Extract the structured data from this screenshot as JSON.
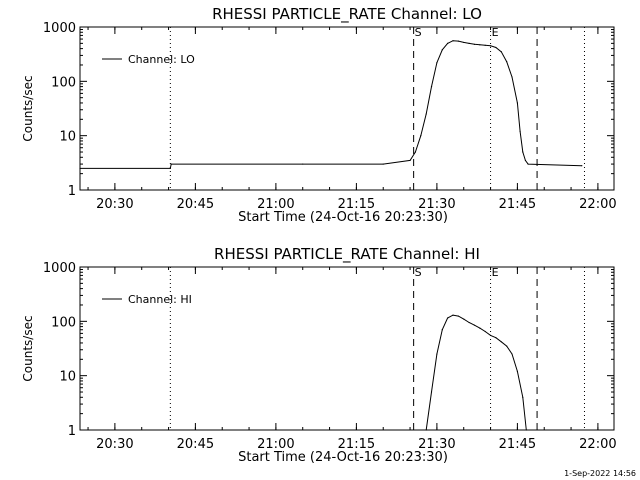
{
  "footer": {
    "timestamp": "1-Sep-2022 14:56"
  },
  "chart_data": [
    {
      "type": "line",
      "title": "RHESSI PARTICLE_RATE Channel: LO",
      "xlabel": "Start Time (24-Oct-16 20:23:30)",
      "ylabel": "Counts/sec",
      "yscale": "log",
      "ylim": [
        1,
        1000
      ],
      "xlim": [
        "20:23:30",
        "22:03:00"
      ],
      "xticks": [
        "20:30",
        "20:45",
        "21:00",
        "21:15",
        "21:30",
        "21:45",
        "22:00"
      ],
      "yticks": [
        "1",
        "10",
        "100",
        "1000"
      ],
      "legend": {
        "label": "Channel: LO",
        "position": "top-left"
      },
      "markers": [
        {
          "time": "20:40:20",
          "style": "dotted",
          "label": ""
        },
        {
          "time": "21:25:40",
          "style": "dashed",
          "label": "S"
        },
        {
          "time": "21:40:00",
          "style": "dotted",
          "label": "E"
        },
        {
          "time": "21:48:40",
          "style": "dashed",
          "label": ""
        },
        {
          "time": "21:57:30",
          "style": "dotted",
          "label": ""
        }
      ],
      "series": [
        {
          "name": "Channel: LO",
          "x": [
            "20:23:30",
            "20:40:20",
            "20:40:30",
            "21:05:00",
            "21:20:00",
            "21:25:00",
            "21:26:00",
            "21:27:00",
            "21:28:00",
            "21:29:00",
            "21:30:00",
            "21:31:00",
            "21:32:00",
            "21:33:00",
            "21:34:00",
            "21:35:00",
            "21:36:00",
            "21:37:00",
            "21:38:00",
            "21:39:00",
            "21:40:00",
            "21:41:00",
            "21:42:00",
            "21:43:00",
            "21:44:00",
            "21:45:00",
            "21:45:30",
            "21:46:00",
            "21:46:30",
            "21:47:00",
            "21:57:00"
          ],
          "y": [
            2.5,
            2.5,
            3.0,
            3.0,
            3.0,
            3.5,
            5,
            10,
            25,
            80,
            220,
            380,
            500,
            560,
            550,
            520,
            500,
            480,
            470,
            460,
            450,
            420,
            350,
            230,
            120,
            40,
            12,
            5,
            3.5,
            3.0,
            2.8
          ]
        }
      ]
    },
    {
      "type": "line",
      "title": "RHESSI PARTICLE_RATE Channel: HI",
      "xlabel": "Start Time (24-Oct-16 20:23:30)",
      "ylabel": "Counts/sec",
      "yscale": "log",
      "ylim": [
        1,
        1000
      ],
      "xlim": [
        "20:23:30",
        "22:03:00"
      ],
      "xticks": [
        "20:30",
        "20:45",
        "21:00",
        "21:15",
        "21:30",
        "21:45",
        "22:00"
      ],
      "yticks": [
        "1",
        "10",
        "100",
        "1000"
      ],
      "legend": {
        "label": "Channel: HI",
        "position": "top-left"
      },
      "markers": [
        {
          "time": "20:40:20",
          "style": "dotted",
          "label": ""
        },
        {
          "time": "21:25:40",
          "style": "dashed",
          "label": "S"
        },
        {
          "time": "21:40:00",
          "style": "dotted",
          "label": "E"
        },
        {
          "time": "21:48:40",
          "style": "dashed",
          "label": ""
        },
        {
          "time": "21:57:30",
          "style": "dotted",
          "label": ""
        }
      ],
      "series": [
        {
          "name": "Channel: HI",
          "x": [
            "21:28:00",
            "21:29:00",
            "21:30:00",
            "21:31:00",
            "21:32:00",
            "21:33:00",
            "21:34:00",
            "21:35:00",
            "21:36:00",
            "21:37:00",
            "21:38:00",
            "21:39:00",
            "21:40:00",
            "21:41:00",
            "21:42:00",
            "21:43:00",
            "21:44:00",
            "21:45:00",
            "21:46:00",
            "21:46:40"
          ],
          "y": [
            1.0,
            5,
            25,
            70,
            115,
            130,
            125,
            110,
            95,
            85,
            75,
            65,
            55,
            50,
            42,
            35,
            25,
            12,
            4,
            1.0
          ]
        }
      ]
    }
  ]
}
